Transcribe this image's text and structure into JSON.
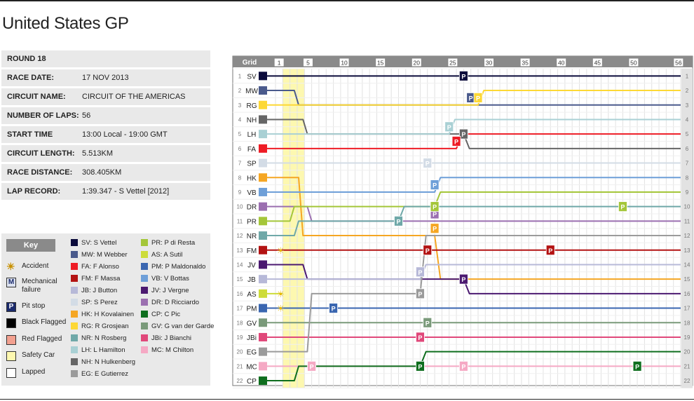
{
  "title": "United States GP",
  "info": [
    {
      "k": "ROUND 18",
      "v": ""
    },
    {
      "k": "RACE DATE:",
      "v": "17 NOV 2013"
    },
    {
      "k": "CIRCUIT NAME:",
      "v": "CIRCUIT OF THE AMERICAS"
    },
    {
      "k": "NUMBER OF LAPS:",
      "v": "56"
    },
    {
      "k": "START TIME",
      "v": "13:00 Local - 19:00 GMT"
    },
    {
      "k": "CIRCUIT LENGTH:",
      "v": "5.513KM"
    },
    {
      "k": "RACE DISTANCE:",
      "v": "308.405KM"
    },
    {
      "k": "LAP RECORD:",
      "v": "1:39.347 - S Vettel [2012]"
    }
  ],
  "key": {
    "heading": "Key",
    "symbols": [
      {
        "label": "Accident",
        "icon": "accident-icon",
        "glyph": "☀",
        "fill": "#ffe14d",
        "color": "#c89000"
      },
      {
        "label": "Mechanical failure",
        "icon": "mechanical-failure-icon",
        "glyph": "M",
        "fill": "#dde3f0",
        "color": "#1a2a6c"
      },
      {
        "label": "Pit stop",
        "icon": "pit-stop-icon",
        "glyph": "P",
        "fill": "#1a2a6c",
        "color": "#ffffff"
      },
      {
        "label": "Black Flagged",
        "icon": "black-flag-icon",
        "glyph": "",
        "fill": "#000000",
        "color": "#ffffff"
      },
      {
        "label": "Red Flagged",
        "icon": "red-flag-icon",
        "glyph": "",
        "fill": "#f2a08f",
        "color": "#ffffff"
      },
      {
        "label": "Safety Car",
        "icon": "safety-car-icon",
        "glyph": "",
        "fill": "#fdf8b0",
        "color": "#ffffff"
      },
      {
        "label": "Lapped",
        "icon": "lapped-icon",
        "glyph": "",
        "fill": "#ffffff",
        "color": "#ffffff"
      }
    ],
    "drivers_col1": [
      {
        "label": "SV: S Vettel",
        "color": "#0b0b3b"
      },
      {
        "label": "MW: M Webber",
        "color": "#4a5a8c"
      },
      {
        "label": "FA: F Alonso",
        "color": "#ee1c25"
      },
      {
        "label": "FM: F Massa",
        "color": "#b31212"
      },
      {
        "label": "JB: J Button",
        "color": "#b7b9d8"
      },
      {
        "label": "SP: S Perez",
        "color": "#d3dce6"
      },
      {
        "label": "HK: H Kovalainen",
        "color": "#f5a623"
      },
      {
        "label": "RG: R Grosjean",
        "color": "#fdd835"
      },
      {
        "label": "NR: N Rosberg",
        "color": "#6fa8a8"
      },
      {
        "label": "LH: L Hamilton",
        "color": "#a9d0d4"
      },
      {
        "label": "NH: N Hulkenberg",
        "color": "#666666"
      },
      {
        "label": "EG: E Gutierrez",
        "color": "#9b9b9b"
      }
    ],
    "drivers_col2": [
      {
        "label": "PR: P di Resta",
        "color": "#a4c639"
      },
      {
        "label": "AS: A Sutil",
        "color": "#cddc39"
      },
      {
        "label": "PM: P Maldonaldo",
        "color": "#3a66b0"
      },
      {
        "label": "VB: V Bottas",
        "color": "#6e9fd8"
      },
      {
        "label": "JV: J Vergne",
        "color": "#4b1970"
      },
      {
        "label": "DR: D Ricciardo",
        "color": "#9b6fb0"
      },
      {
        "label": "CP: C Pic",
        "color": "#0e6e1e"
      },
      {
        "label": "GV: G van der Garde",
        "color": "#7a9a7a"
      },
      {
        "label": "JBi: J Bianchi",
        "color": "#e0487a"
      },
      {
        "label": "MC: M Chilton",
        "color": "#f5a9c4"
      }
    ]
  },
  "chart_data": {
    "type": "line",
    "title": "",
    "xlabel": "",
    "ylabel": "Grid",
    "x_ticks": [
      1,
      5,
      10,
      15,
      20,
      25,
      30,
      35,
      40,
      45,
      50,
      56
    ],
    "xlim": [
      0,
      56
    ],
    "ylim": [
      1,
      22
    ],
    "positions": [
      1,
      2,
      3,
      4,
      5,
      6,
      7,
      8,
      9,
      10,
      11,
      12,
      13,
      14,
      15,
      16,
      17,
      18,
      19,
      20,
      21,
      22
    ],
    "safety_car_laps": [
      1,
      4
    ],
    "series": [
      {
        "name": "SV",
        "grid": 1,
        "color": "#0b0b3b",
        "finish": 1,
        "pits": [
          26
        ]
      },
      {
        "name": "MW",
        "grid": 2,
        "color": "#4a5a8c",
        "finish": 3,
        "pits": [
          27
        ]
      },
      {
        "name": "RG",
        "grid": 3,
        "color": "#fdd835",
        "finish": 2,
        "pits": [
          28
        ]
      },
      {
        "name": "NH",
        "grid": 4,
        "color": "#666666",
        "finish": 6,
        "pits": [
          26
        ]
      },
      {
        "name": "LH",
        "grid": 5,
        "color": "#a9d0d4",
        "finish": 4,
        "pits": [
          24
        ]
      },
      {
        "name": "FA",
        "grid": 6,
        "color": "#ee1c25",
        "finish": 5,
        "pits": [
          25
        ]
      },
      {
        "name": "SP",
        "grid": 7,
        "color": "#d3dce6",
        "finish": 7,
        "pits": [
          21
        ]
      },
      {
        "name": "HK",
        "grid": 8,
        "color": "#f5a623",
        "finish": 15,
        "pits": [
          22
        ]
      },
      {
        "name": "VB",
        "grid": 9,
        "color": "#6e9fd8",
        "finish": 8,
        "pits": [
          22
        ]
      },
      {
        "name": "DR",
        "grid": 10,
        "color": "#9b6fb0",
        "finish": 11,
        "pits": [
          22
        ]
      },
      {
        "name": "PR",
        "grid": 11,
        "color": "#a4c639",
        "finish": 9,
        "pits": [
          22,
          48
        ]
      },
      {
        "name": "NR",
        "grid": 12,
        "color": "#6fa8a8",
        "finish": 10,
        "pits": [
          17
        ]
      },
      {
        "name": "FM",
        "grid": 13,
        "color": "#b31212",
        "finish": 13,
        "pits": [
          21,
          38
        ],
        "accident_lap": 1
      },
      {
        "name": "JV",
        "grid": 14,
        "color": "#4b1970",
        "finish": 16,
        "pits": [
          26
        ]
      },
      {
        "name": "JB",
        "grid": 15,
        "color": "#b7b9d8",
        "finish": 14,
        "pits": [
          20
        ]
      },
      {
        "name": "AS",
        "grid": 16,
        "color": "#cddc39",
        "finish": 22,
        "retired_lap": 1,
        "accident_lap": 1,
        "pits": []
      },
      {
        "name": "PM",
        "grid": 17,
        "color": "#3a66b0",
        "finish": 17,
        "pits": [
          8
        ],
        "accident_lap": 1
      },
      {
        "name": "GV",
        "grid": 18,
        "color": "#7a9a7a",
        "finish": 18,
        "pits": [
          21
        ]
      },
      {
        "name": "JBi",
        "grid": 19,
        "color": "#e0487a",
        "finish": 19,
        "pits": [
          20
        ]
      },
      {
        "name": "EG",
        "grid": 20,
        "color": "#9b9b9b",
        "finish": 12,
        "pits": [
          20
        ]
      },
      {
        "name": "MC",
        "grid": 21,
        "color": "#f5a9c4",
        "finish": 21,
        "pits": [
          5,
          26
        ]
      },
      {
        "name": "CP",
        "grid": 22,
        "color": "#0e6e1e",
        "finish": 20,
        "pits": [
          20,
          50
        ]
      }
    ]
  }
}
